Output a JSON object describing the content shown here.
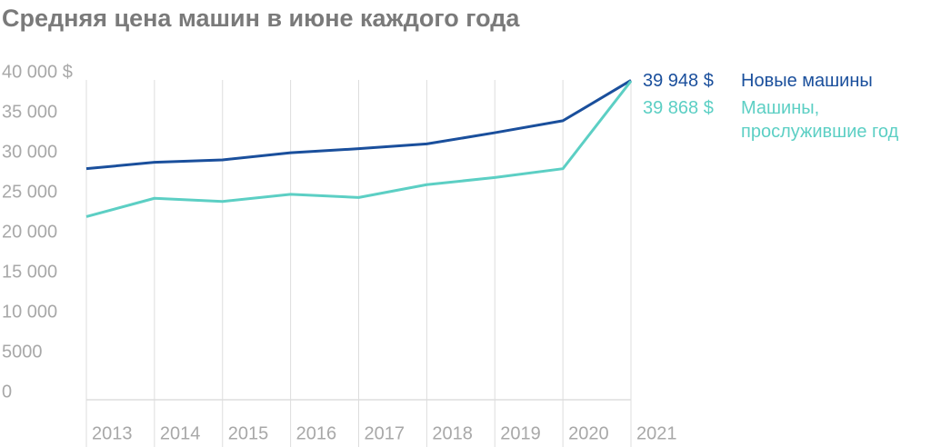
{
  "chart_data": {
    "type": "line",
    "title": "Средняя цена машин в июне каждого года",
    "categories": [
      "2013",
      "2014",
      "2015",
      "2016",
      "2017",
      "2018",
      "2019",
      "2020",
      "2021"
    ],
    "series": [
      {
        "name": "Новые машины",
        "color": "#1a4f9c",
        "values": [
          28900,
          29700,
          30000,
          30900,
          31400,
          32000,
          33400,
          34900,
          39948
        ],
        "value_labels": [
          null,
          null,
          null,
          null,
          null,
          null,
          null,
          null,
          "39 948 $"
        ]
      },
      {
        "name": "Машины, прослужившие год",
        "color": "#5ccfc4",
        "values": [
          22900,
          25200,
          24800,
          25700,
          25300,
          26900,
          27800,
          28900,
          39868
        ],
        "value_labels": [
          null,
          null,
          null,
          null,
          null,
          null,
          null,
          null,
          "39 868 $"
        ]
      }
    ],
    "ylim": [
      0,
      40000
    ],
    "yticks": [
      0,
      {
        "value": 5000,
        "label": "5000"
      },
      {
        "value": 10000,
        "label": "10 000"
      },
      {
        "value": 15000,
        "label": "15 000"
      },
      {
        "value": 20000,
        "label": "20 000"
      },
      {
        "value": 25000,
        "label": "25 000"
      },
      {
        "value": 30000,
        "label": "30 000"
      },
      {
        "value": 35000,
        "label": "35 000"
      },
      {
        "value": 40000,
        "label": "40 000 $"
      }
    ],
    "grid": true
  }
}
